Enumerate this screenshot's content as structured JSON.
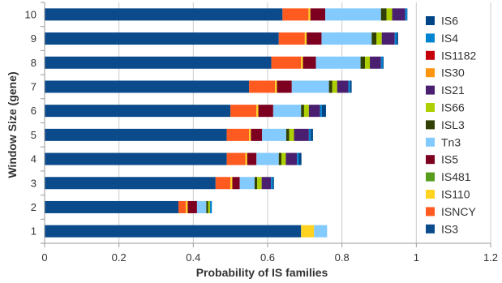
{
  "chart_data": {
    "type": "bar",
    "orientation": "horizontal",
    "stacked": true,
    "xlabel": "Probability of IS families",
    "ylabel": "Window Size (gene)",
    "xlim": [
      0,
      1.2
    ],
    "xticks": [
      "0",
      "0.2",
      "0.4",
      "0.6",
      "0.8",
      "1",
      "1.2"
    ],
    "grid": "vertical",
    "legend_position": "right",
    "categories": [
      "1",
      "2",
      "3",
      "4",
      "5",
      "6",
      "7",
      "8",
      "9",
      "10"
    ],
    "series": [
      {
        "name": "IS3",
        "color": "#0b4a8b",
        "values": [
          0.69,
          0.36,
          0.46,
          0.49,
          0.49,
          0.5,
          0.55,
          0.61,
          0.63,
          0.64
        ]
      },
      {
        "name": "ISNCY",
        "color": "#ff5a1f",
        "values": [
          0.0,
          0.02,
          0.04,
          0.05,
          0.06,
          0.07,
          0.07,
          0.08,
          0.07,
          0.07
        ]
      },
      {
        "name": "IS110",
        "color": "#ffd320",
        "values": [
          0.035,
          0.005,
          0.005,
          0.005,
          0.005,
          0.005,
          0.005,
          0.005,
          0.005,
          0.005
        ]
      },
      {
        "name": "IS481",
        "color": "#579d1c",
        "values": [
          0,
          0,
          0,
          0,
          0,
          0,
          0,
          0,
          0,
          0
        ]
      },
      {
        "name": "IS5",
        "color": "#7e0021",
        "values": [
          0.0,
          0.025,
          0.02,
          0.025,
          0.03,
          0.04,
          0.04,
          0.035,
          0.04,
          0.04
        ]
      },
      {
        "name": "Tn3",
        "color": "#83caff",
        "values": [
          0.035,
          0.025,
          0.04,
          0.06,
          0.065,
          0.075,
          0.1,
          0.12,
          0.135,
          0.15
        ]
      },
      {
        "name": "ISL3",
        "color": "#314004",
        "values": [
          0.0,
          0.005,
          0.007,
          0.007,
          0.008,
          0.008,
          0.009,
          0.012,
          0.013,
          0.015
        ]
      },
      {
        "name": "IS66",
        "color": "#aecf00",
        "values": [
          0.0,
          0.005,
          0.012,
          0.012,
          0.013,
          0.013,
          0.013,
          0.013,
          0.014,
          0.015
        ]
      },
      {
        "name": "IS21",
        "color": "#4b1f6f",
        "values": [
          0.0,
          0.0,
          0.025,
          0.03,
          0.04,
          0.03,
          0.03,
          0.03,
          0.035,
          0.035
        ]
      },
      {
        "name": "IS1182",
        "color": "#c5000b",
        "values": [
          0,
          0,
          0,
          0,
          0,
          0,
          0,
          0,
          0,
          0
        ]
      },
      {
        "name": "IS4",
        "color": "#0084d1",
        "values": [
          0.0,
          0.005,
          0.005,
          0.005,
          0.005,
          0.005,
          0.005,
          0.005,
          0.005,
          0.005
        ]
      },
      {
        "name": "IS6",
        "color": "#004586",
        "values": [
          0.0,
          0.0,
          0.003,
          0.007,
          0.006,
          0.011,
          0.004,
          0.002,
          0.004,
          0.001
        ]
      }
    ],
    "legend_order": [
      "IS6",
      "IS4",
      "IS1182",
      "IS30",
      "IS21",
      "IS66",
      "ISL3",
      "Tn3",
      "IS5",
      "IS481",
      "IS110",
      "ISNCY",
      "IS3"
    ],
    "legend_colors": {
      "IS6": "#004586",
      "IS4": "#0084d1",
      "IS1182": "#c5000b",
      "IS30": "#ff950e",
      "IS21": "#4b1f6f",
      "IS66": "#aecf00",
      "ISL3": "#314004",
      "Tn3": "#83caff",
      "IS5": "#7e0021",
      "IS481": "#579d1c",
      "IS110": "#ffd320",
      "ISNCY": "#ff5a1f",
      "IS3": "#0b4a8b"
    }
  }
}
